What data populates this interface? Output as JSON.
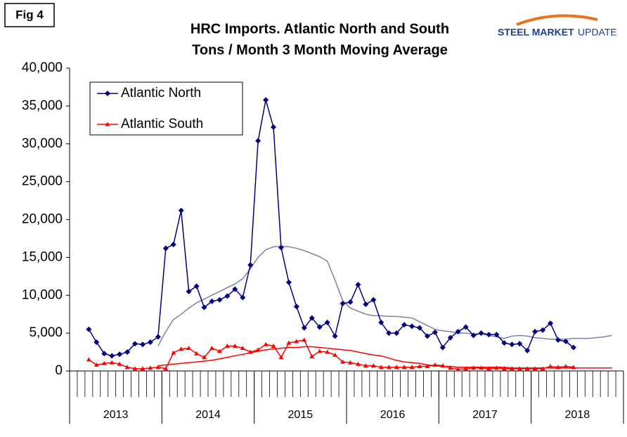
{
  "figure_label": "Fig 4",
  "logo": {
    "bold": "STEEL MARKET",
    "light": "UPDATE"
  },
  "chart_data": {
    "type": "line",
    "title": "HRC Imports. Atlantic North and South",
    "subtitle": "Tons / Month 3 Month Moving Average",
    "categories": [
      null,
      null,
      null,
      null,
      null,
      null,
      null,
      null,
      null,
      null,
      null,
      null,
      null,
      null,
      null,
      null,
      null,
      null,
      null,
      null,
      null,
      null,
      null,
      null,
      null,
      null,
      null,
      null,
      null,
      null,
      null,
      null,
      null,
      null,
      null,
      null,
      null,
      null,
      null,
      null,
      null,
      null,
      null,
      null,
      null,
      null,
      null,
      null,
      null,
      null,
      null,
      null,
      null,
      null,
      null,
      null,
      null,
      null,
      null,
      null,
      null,
      null,
      null,
      null,
      null,
      null,
      null,
      null,
      null,
      null,
      null,
      null
    ],
    "category_groups": [
      "2013",
      "2014",
      "2015",
      "2016",
      "2017",
      "2018"
    ],
    "ylim": [
      0,
      40000
    ],
    "yticks": [
      0,
      {
        "value": 5000,
        "label": "5,000"
      },
      {
        "value": 10000,
        "label": "10,000"
      },
      {
        "value": 15000,
        "label": "15,000"
      },
      {
        "value": 20000,
        "label": "20,000"
      },
      {
        "value": 25000,
        "label": "25,000"
      },
      {
        "value": 30000,
        "label": "30,000"
      },
      {
        "value": 35000,
        "label": "35,000"
      },
      {
        "value": 40000,
        "label": "40,000"
      }
    ],
    "grid": false,
    "legend": "top-left",
    "series": [
      {
        "name": "Atlantic North",
        "color": "#000080",
        "marker": "diamond",
        "trend_color": "#7f7fa8",
        "values": [
          null,
          null,
          5500,
          3800,
          2300,
          2000,
          2200,
          2500,
          3600,
          3500,
          3800,
          4500,
          16200,
          16700,
          21200,
          10500,
          11200,
          8400,
          9200,
          9400,
          9900,
          10800,
          9700,
          14000,
          30400,
          35800,
          32200,
          16300,
          11700,
          8500,
          5700,
          7000,
          5800,
          6400,
          4600,
          8900,
          9100,
          11400,
          8800,
          9400,
          6400,
          5000,
          5000,
          6100,
          5900,
          5700,
          4600,
          5100,
          3100,
          4400,
          5200,
          5800,
          4700,
          5000,
          4800,
          4800,
          3700,
          3500,
          3600,
          2700,
          5200,
          5400,
          6300,
          4100,
          3900,
          3100,
          null,
          null,
          null,
          null,
          null,
          null
        ],
        "trend": [
          null,
          null,
          null,
          null,
          null,
          null,
          null,
          null,
          null,
          null,
          null,
          3300,
          5200,
          6800,
          7500,
          8300,
          9000,
          9500,
          10000,
          10500,
          11000,
          11500,
          12200,
          13500,
          15000,
          16000,
          16400,
          16500,
          16400,
          16200,
          15900,
          15500,
          15100,
          14500,
          12000,
          9300,
          8300,
          7900,
          7500,
          7300,
          7300,
          7200,
          7200,
          7100,
          7000,
          6500,
          6000,
          5500,
          5300,
          5200,
          5000,
          5000,
          4900,
          4900,
          4700,
          4500,
          4300,
          4600,
          4700,
          4600,
          4400,
          4300,
          4200,
          4200,
          4200,
          4300,
          4300,
          4300,
          4400,
          4500,
          4700,
          null
        ]
      },
      {
        "name": "Atlantic South",
        "color": "#ff0000",
        "marker": "triangle",
        "trend_color": "#ff0000",
        "values": [
          null,
          null,
          1500,
          800,
          1000,
          1100,
          900,
          500,
          300,
          300,
          400,
          500,
          300,
          2400,
          2900,
          3000,
          2300,
          1800,
          3000,
          2600,
          3300,
          3300,
          3000,
          2500,
          2800,
          3500,
          3300,
          1800,
          3700,
          3900,
          4100,
          1900,
          2600,
          2500,
          2100,
          1200,
          1100,
          900,
          700,
          700,
          500,
          500,
          500,
          500,
          500,
          600,
          600,
          800,
          700,
          400,
          200,
          300,
          400,
          400,
          300,
          400,
          300,
          300,
          300,
          300,
          300,
          300,
          600,
          500,
          600,
          500,
          null,
          null,
          null,
          null,
          null,
          null
        ],
        "trend": [
          null,
          null,
          null,
          null,
          null,
          null,
          null,
          null,
          null,
          null,
          null,
          700,
          800,
          900,
          1000,
          1100,
          1200,
          1300,
          1400,
          1600,
          1800,
          2000,
          2200,
          2400,
          2600,
          2800,
          2900,
          3000,
          3100,
          3100,
          3200,
          3200,
          3100,
          3000,
          2900,
          2800,
          2700,
          2500,
          2300,
          2100,
          2000,
          1700,
          1400,
          1200,
          1100,
          1000,
          800,
          700,
          600,
          600,
          500,
          500,
          500,
          500,
          500,
          500,
          500,
          400,
          400,
          400,
          400,
          400,
          400,
          400,
          400,
          400,
          400,
          400,
          400,
          400,
          400,
          null
        ]
      }
    ]
  }
}
